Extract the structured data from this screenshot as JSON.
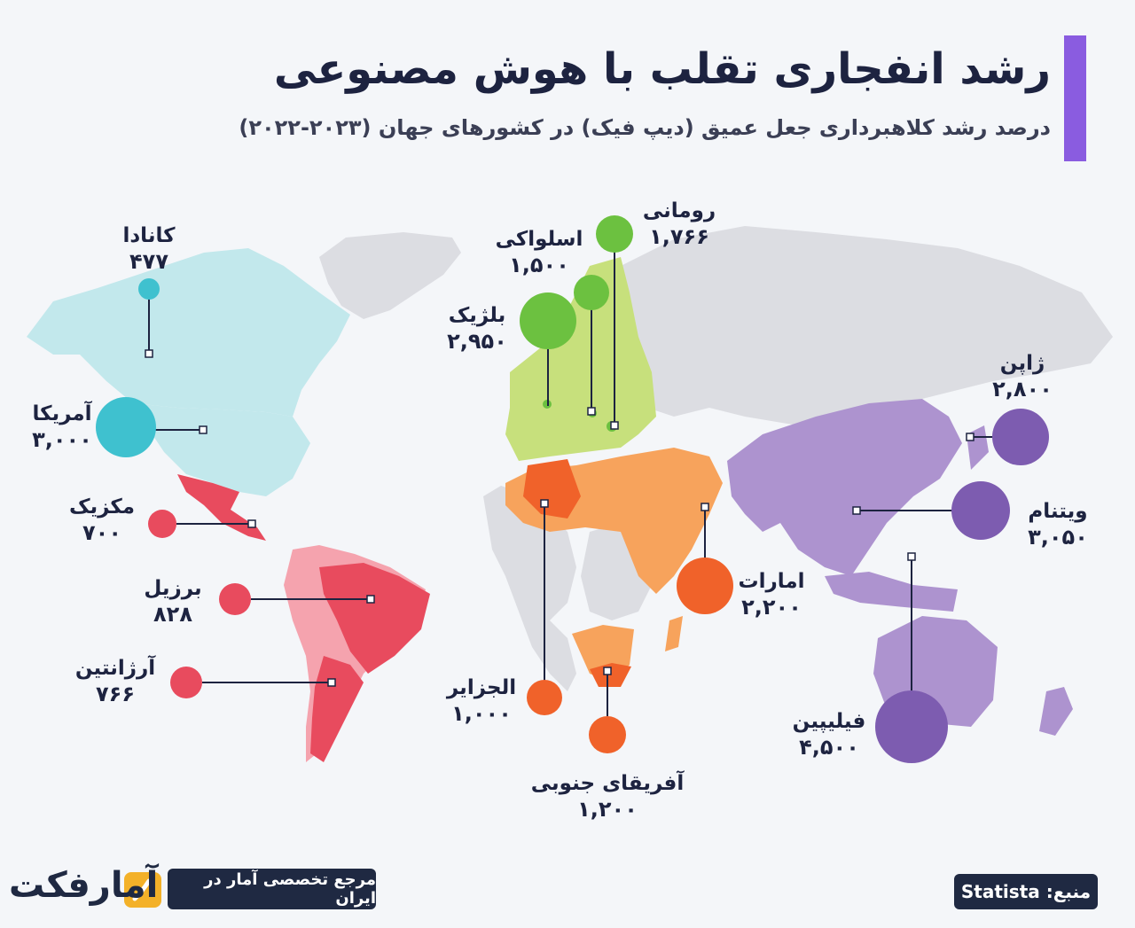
{
  "header": {
    "title": "رشد انفجاری تقلب با هوش مصنوعی",
    "subtitle": "درصد رشد کلاهبرداری جعل عمیق (دیپ فیک) در کشورهای جهان (۲۰۲۳-۲۰۲۲)"
  },
  "countries": {
    "canada": {
      "name": "کانادا",
      "value": "۴۷۷",
      "color": "#3fc1cf"
    },
    "usa": {
      "name": "آمریکا",
      "value": "۳,۰۰۰",
      "color": "#3fc1cf"
    },
    "mexico": {
      "name": "مکزیک",
      "value": "۷۰۰",
      "color": "#e84b5e"
    },
    "brazil": {
      "name": "برزیل",
      "value": "۸۲۸",
      "color": "#e84b5e"
    },
    "argentina": {
      "name": "آرژانتین",
      "value": "۷۶۶",
      "color": "#e84b5e"
    },
    "romania": {
      "name": "رومانی",
      "value": "۱,۷۶۶",
      "color": "#6cc140"
    },
    "slovakia": {
      "name": "اسلواکی",
      "value": "۱,۵۰۰",
      "color": "#6cc140"
    },
    "belgium": {
      "name": "بلژیک",
      "value": "۲,۹۵۰",
      "color": "#6cc140"
    },
    "algeria": {
      "name": "الجزایر",
      "value": "۱,۰۰۰",
      "color": "#f0622a"
    },
    "south_africa": {
      "name": "آفریقای جنوبی",
      "value": "۱,۲۰۰",
      "color": "#f0622a"
    },
    "uae": {
      "name": "امارات",
      "value": "۲,۲۰۰",
      "color": "#f0622a"
    },
    "japan": {
      "name": "ژاپن",
      "value": "۲,۸۰۰",
      "color": "#7d5cb0"
    },
    "vietnam": {
      "name": "ویتنام",
      "value": "۳,۰۵۰",
      "color": "#7d5cb0"
    },
    "philippines": {
      "name": "فیلیپین",
      "value": "۴,۵۰۰",
      "color": "#7d5cb0"
    }
  },
  "chart_data": {
    "type": "map-bubble",
    "unit": "%",
    "points": [
      {
        "country": "کانادا",
        "value": 477
      },
      {
        "country": "آمریکا",
        "value": 3000
      },
      {
        "country": "مکزیک",
        "value": 700
      },
      {
        "country": "برزیل",
        "value": 828
      },
      {
        "country": "آرژانتین",
        "value": 766
      },
      {
        "country": "رومانی",
        "value": 1766
      },
      {
        "country": "اسلواکی",
        "value": 1500
      },
      {
        "country": "بلژیک",
        "value": 2950
      },
      {
        "country": "الجزایر",
        "value": 1000
      },
      {
        "country": "آفریقای جنوبی",
        "value": 1200
      },
      {
        "country": "امارات",
        "value": 2200
      },
      {
        "country": "ژاپن",
        "value": 2800
      },
      {
        "country": "ویتنام",
        "value": 3050
      },
      {
        "country": "فیلیپین",
        "value": 4500
      }
    ]
  },
  "footer": {
    "source": "منبع: Statista",
    "tagline": "مرجع تخصصی آمار در ایران",
    "logo": "آمارفکت"
  }
}
